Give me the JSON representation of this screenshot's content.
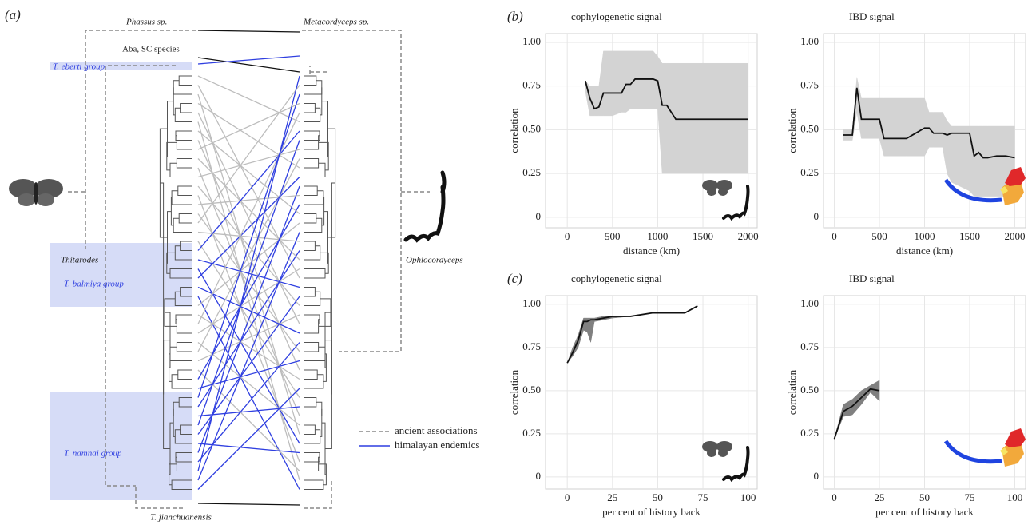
{
  "panel_a": {
    "label": "(a)",
    "outgroup_host": "Phassus sp.",
    "outgroup_fungus": "Metacordyceps sp.",
    "aba_label": "Aba, SC species",
    "eberti_group": "T. eberti group",
    "host_genus": "Thitarodes",
    "fungus_genus": "Ophiocordyceps",
    "balmiya_group": "T. balmiya group",
    "namnai_group": "T. namnai group",
    "jianchuanensis": "T. jianchuanensis",
    "legend": [
      "ancient associations",
      "himalayan endemics"
    ]
  },
  "chart_data": [
    {
      "type": "line",
      "panel_label": "(b)",
      "title": "cophylogenetic signal",
      "xlabel": "distance (km)",
      "ylabel": "correlation",
      "x": [
        200,
        250,
        300,
        350,
        400,
        500,
        600,
        650,
        700,
        750,
        800,
        950,
        1000,
        1050,
        1100,
        1200,
        1500,
        2000
      ],
      "values": [
        0.78,
        0.68,
        0.62,
        0.63,
        0.71,
        0.71,
        0.71,
        0.76,
        0.76,
        0.79,
        0.79,
        0.79,
        0.78,
        0.64,
        0.64,
        0.56,
        0.56,
        0.56
      ],
      "band_lower": [
        0.72,
        0.58,
        0.58,
        0.58,
        0.58,
        0.58,
        0.6,
        0.6,
        0.62,
        0.62,
        0.62,
        0.62,
        0.62,
        0.25,
        0.25,
        0.25,
        0.25,
        0.25
      ],
      "band_upper": [
        0.78,
        0.75,
        0.75,
        0.75,
        0.95,
        0.95,
        0.95,
        0.95,
        0.95,
        0.95,
        0.95,
        0.95,
        0.92,
        0.88,
        0.88,
        0.88,
        0.88,
        0.88
      ],
      "color": "#111111",
      "band_color": "#d3d3d3",
      "xlim": [
        -240,
        2100
      ],
      "xticks": [
        0,
        500,
        1000,
        1500,
        2000
      ],
      "ylim": [
        -0.06,
        1.05
      ],
      "yticks": [
        0,
        0.25,
        {
          "value": 0.5,
          "label": "0.50"
        },
        0.75,
        {
          "value": 1,
          "label": "1.00"
        }
      ],
      "grid": true
    },
    {
      "type": "line",
      "title": "IBD signal",
      "xlabel": "distance (km)",
      "ylabel": "correlation",
      "x": [
        100,
        200,
        250,
        300,
        350,
        500,
        550,
        800,
        1000,
        1050,
        1100,
        1200,
        1250,
        1300,
        1500,
        1550,
        1600,
        1650,
        1700,
        1800,
        1900,
        2000
      ],
      "values": [
        0.47,
        0.47,
        0.74,
        0.56,
        0.56,
        0.56,
        0.45,
        0.45,
        0.51,
        0.51,
        0.48,
        0.48,
        0.47,
        0.48,
        0.48,
        0.35,
        0.37,
        0.34,
        0.34,
        0.35,
        0.35,
        0.34
      ],
      "band_lower": [
        0.44,
        0.44,
        0.6,
        0.45,
        0.45,
        0.45,
        0.35,
        0.35,
        0.35,
        0.4,
        0.4,
        0.4,
        0.25,
        0.2,
        0.15,
        0.12,
        0.12,
        0.12,
        0.12,
        0.12,
        0.12,
        0.12
      ],
      "band_upper": [
        0.5,
        0.5,
        0.8,
        0.68,
        0.68,
        0.68,
        0.68,
        0.68,
        0.68,
        0.6,
        0.6,
        0.6,
        0.55,
        0.52,
        0.52,
        0.52,
        0.52,
        0.52,
        0.52,
        0.52,
        0.52,
        0.52
      ],
      "color": "#111111",
      "band_color": "#d3d3d3",
      "xlim": [
        -120,
        2120
      ],
      "xticks": [
        0,
        500,
        1000,
        1500,
        2000
      ],
      "ylim": [
        -0.06,
        1.05
      ],
      "yticks": [
        0,
        0.25,
        {
          "value": 0.5,
          "label": "0.50"
        },
        0.75,
        {
          "value": 1,
          "label": "1.00"
        }
      ],
      "grid": true
    },
    {
      "type": "line",
      "panel_label": "(c)",
      "title": "cophylogenetic signal",
      "xlabel": "per cent of history back",
      "ylabel": "correlation",
      "x": [
        0,
        3,
        6,
        9,
        11,
        13,
        15,
        20,
        25,
        35,
        47,
        65,
        72
      ],
      "values": [
        0.66,
        0.72,
        0.79,
        0.9,
        0.9,
        0.91,
        0.91,
        0.92,
        0.93,
        0.93,
        0.95,
        0.95,
        0.99
      ],
      "band_lower": [
        0.66,
        0.7,
        0.75,
        0.85,
        0.84,
        0.78,
        0.9,
        0.91,
        0.92,
        0.93,
        0.95,
        0.95,
        0.99
      ],
      "band_upper": [
        0.66,
        0.75,
        0.82,
        0.92,
        0.92,
        0.92,
        0.92,
        0.93,
        0.93,
        0.93,
        0.95,
        0.95,
        0.99
      ],
      "color": "#111111",
      "band_color": "#808080",
      "xlim": [
        -12,
        105
      ],
      "xticks": [
        0,
        25,
        50,
        75,
        100
      ],
      "ylim": [
        -0.07,
        1.05
      ],
      "yticks": [
        0,
        0.25,
        {
          "value": 0.5,
          "label": "0.50"
        },
        0.75,
        {
          "value": 1,
          "label": "1.00"
        }
      ],
      "grid": true
    },
    {
      "type": "line",
      "title": "IBD signal",
      "xlabel": "per cent of history back",
      "ylabel": "correlation",
      "x": [
        0,
        5,
        10,
        15,
        20,
        25
      ],
      "values": [
        0.22,
        0.38,
        0.41,
        0.46,
        0.51,
        0.5
      ],
      "band_lower": [
        0.22,
        0.35,
        0.36,
        0.42,
        0.49,
        0.44
      ],
      "band_upper": [
        0.22,
        0.42,
        0.45,
        0.5,
        0.53,
        0.56
      ],
      "color": "#111111",
      "band_color": "#808080",
      "xlim": [
        -6,
        106
      ],
      "xticks": [
        0,
        25,
        50,
        75,
        100
      ],
      "ylim": [
        -0.07,
        1.05
      ],
      "yticks": [
        0,
        0.25,
        {
          "value": 0.5,
          "label": "0.50"
        },
        0.75,
        {
          "value": 1,
          "label": "1.00"
        }
      ],
      "grid": true
    }
  ]
}
